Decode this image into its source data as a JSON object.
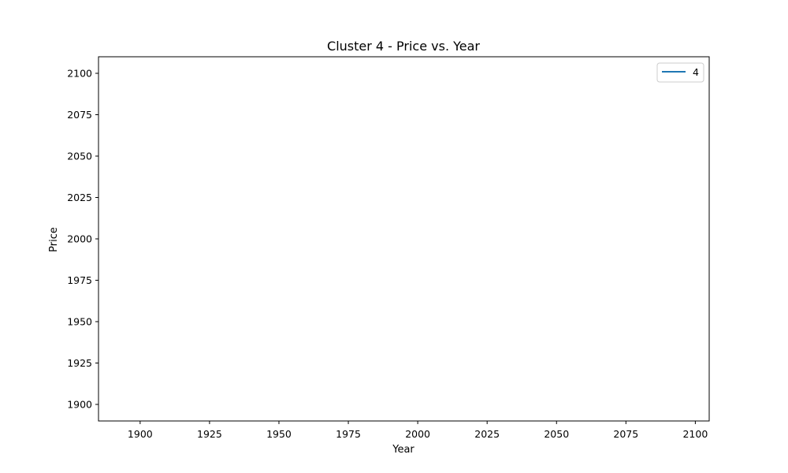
{
  "chart_data": {
    "type": "line",
    "title": "Cluster 4 - Price vs. Year",
    "xlabel": "Year",
    "ylabel": "Price",
    "xlim": [
      1885,
      2105
    ],
    "ylim": [
      1890,
      2110
    ],
    "x_ticks": [
      "1900",
      "1925",
      "1950",
      "1975",
      "2000",
      "2025",
      "2050",
      "2075",
      "2100"
    ],
    "y_ticks": [
      "1900",
      "1925",
      "1950",
      "1975",
      "2000",
      "2025",
      "2050",
      "2075",
      "2100"
    ],
    "grid": false,
    "legend_position": "top-right",
    "series": [
      {
        "name": "4",
        "color": "#1f77b4",
        "x": [],
        "y": []
      }
    ]
  }
}
